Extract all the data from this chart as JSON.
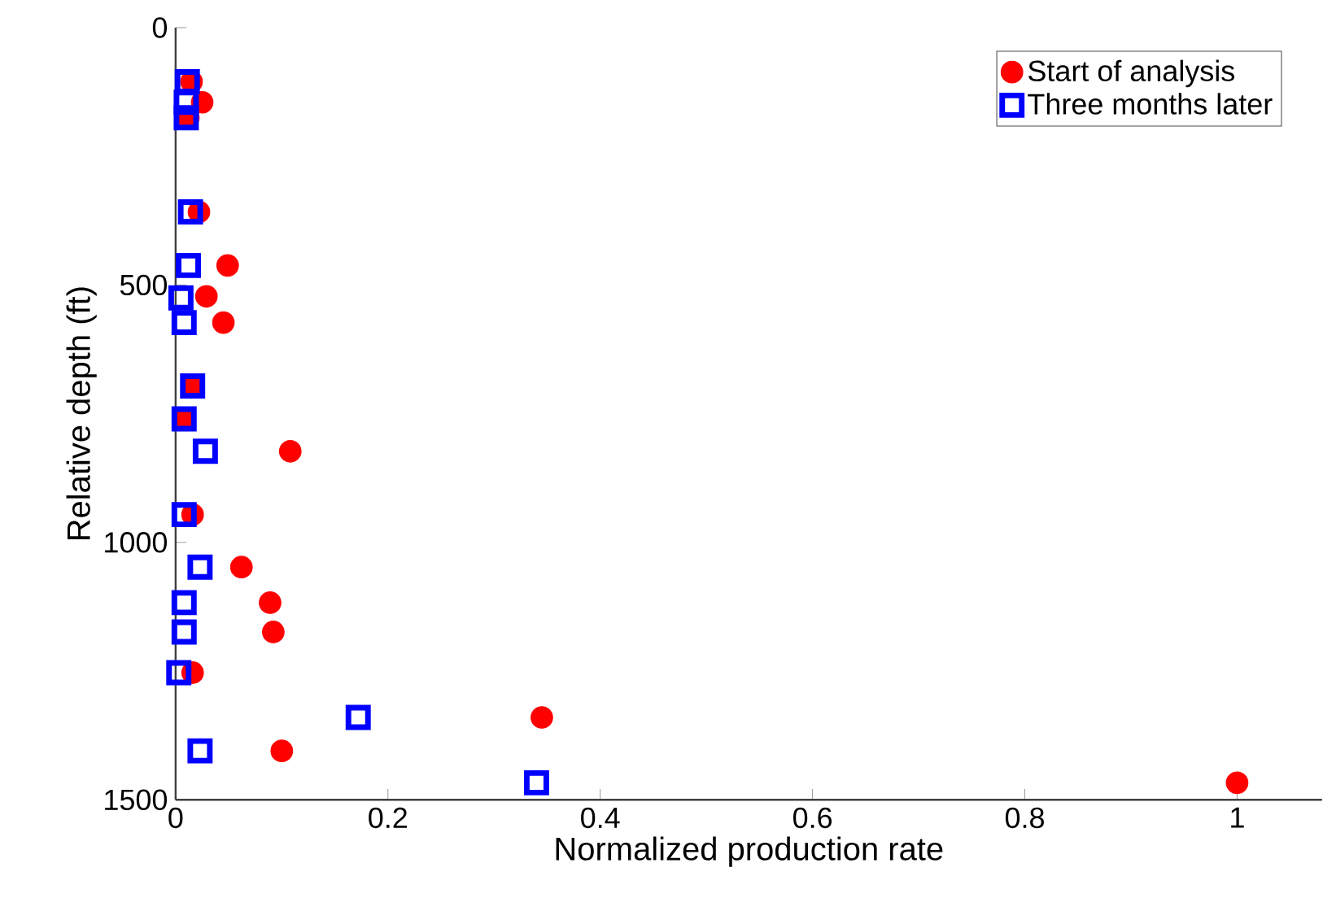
{
  "chart_data": {
    "type": "scatter",
    "xlabel": "Normalized production rate",
    "ylabel": "Relative depth (ft)",
    "xlim": [
      0,
      1.08
    ],
    "ylim": [
      1500,
      0
    ],
    "xticks": [
      0,
      0.2,
      0.4,
      0.6,
      0.8,
      1
    ],
    "yticks": [
      0,
      500,
      1000,
      1500
    ],
    "grid": false,
    "legend": "top right",
    "series": [
      {
        "name": "Start of analysis",
        "color": "#ff0000",
        "marker": "circle",
        "x": [
          0.015,
          0.025,
          0.012,
          0.022,
          0.049,
          0.029,
          0.045,
          0.016,
          0.008,
          0.108,
          0.016,
          0.062,
          0.089,
          0.092,
          0.016,
          0.1,
          0.345,
          1.0
        ],
        "values": [
          105,
          145,
          175,
          358,
          462,
          522,
          573,
          696,
          760,
          823,
          946,
          1048,
          1117,
          1174,
          1253,
          1405,
          1340,
          1467
        ]
      },
      {
        "name": "Three months later",
        "color": "#0000ff",
        "marker": "square",
        "x": [
          0.011,
          0.01,
          0.01,
          0.014,
          0.012,
          0.005,
          0.008,
          0.016,
          0.008,
          0.028,
          0.008,
          0.023,
          0.008,
          0.008,
          0.003,
          0.023,
          0.172,
          0.34
        ],
        "values": [
          105,
          145,
          175,
          358,
          462,
          525,
          573,
          696,
          760,
          823,
          946,
          1048,
          1117,
          1174,
          1253,
          1405,
          1340,
          1467
        ]
      }
    ]
  }
}
